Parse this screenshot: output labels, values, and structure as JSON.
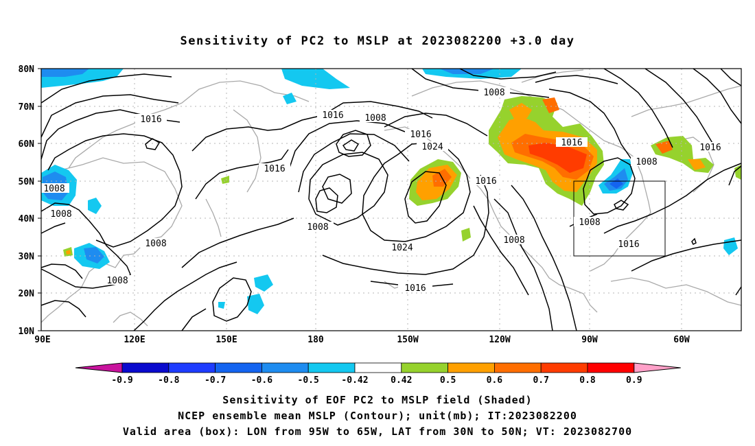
{
  "title": "Sensitivity of PC2 to MSLP at 2023082200 +3.0 day",
  "axes": {
    "lat_labels": [
      "80N",
      "70N",
      "60N",
      "50N",
      "40N",
      "30N",
      "20N",
      "10N"
    ],
    "lon_labels": [
      "90E",
      "120E",
      "150E",
      "180",
      "150W",
      "120W",
      "90W",
      "60W"
    ]
  },
  "contour_labels": [
    "1016",
    "1008",
    "1016",
    "1008",
    "1016",
    "1024",
    "1016",
    "1008",
    "1016",
    "1008",
    "1008",
    "1008",
    "1008",
    "1008",
    "1016",
    "1016",
    "1024",
    "1016",
    "1008",
    "1008",
    "1016",
    "1016",
    "1008"
  ],
  "colorbar": {
    "labels": [
      "-0.9",
      "-0.8",
      "-0.7",
      "-0.6",
      "-0.5",
      "-0.42",
      "0.42",
      "0.5",
      "0.6",
      "0.7",
      "0.8",
      "0.9"
    ],
    "colors": [
      "#c8139d",
      "#0a0acd",
      "#1e3cff",
      "#1464f0",
      "#1e8cf0",
      "#14c8f0",
      "#ffffff",
      "#96d22d",
      "#ffa000",
      "#ff6e00",
      "#ff3c00",
      "#ff0000",
      "#ffa0c8"
    ]
  },
  "captions": {
    "line1": "Sensitivity of EOF PC2 to MSLP field (Shaded)",
    "line2": "NCEP ensemble mean MSLP (Contour); unit(mb); IT:2023082200",
    "line3": "Valid area (box): LON from 95W to 65W, LAT from 30N to 50N; VT: 2023082700"
  }
}
